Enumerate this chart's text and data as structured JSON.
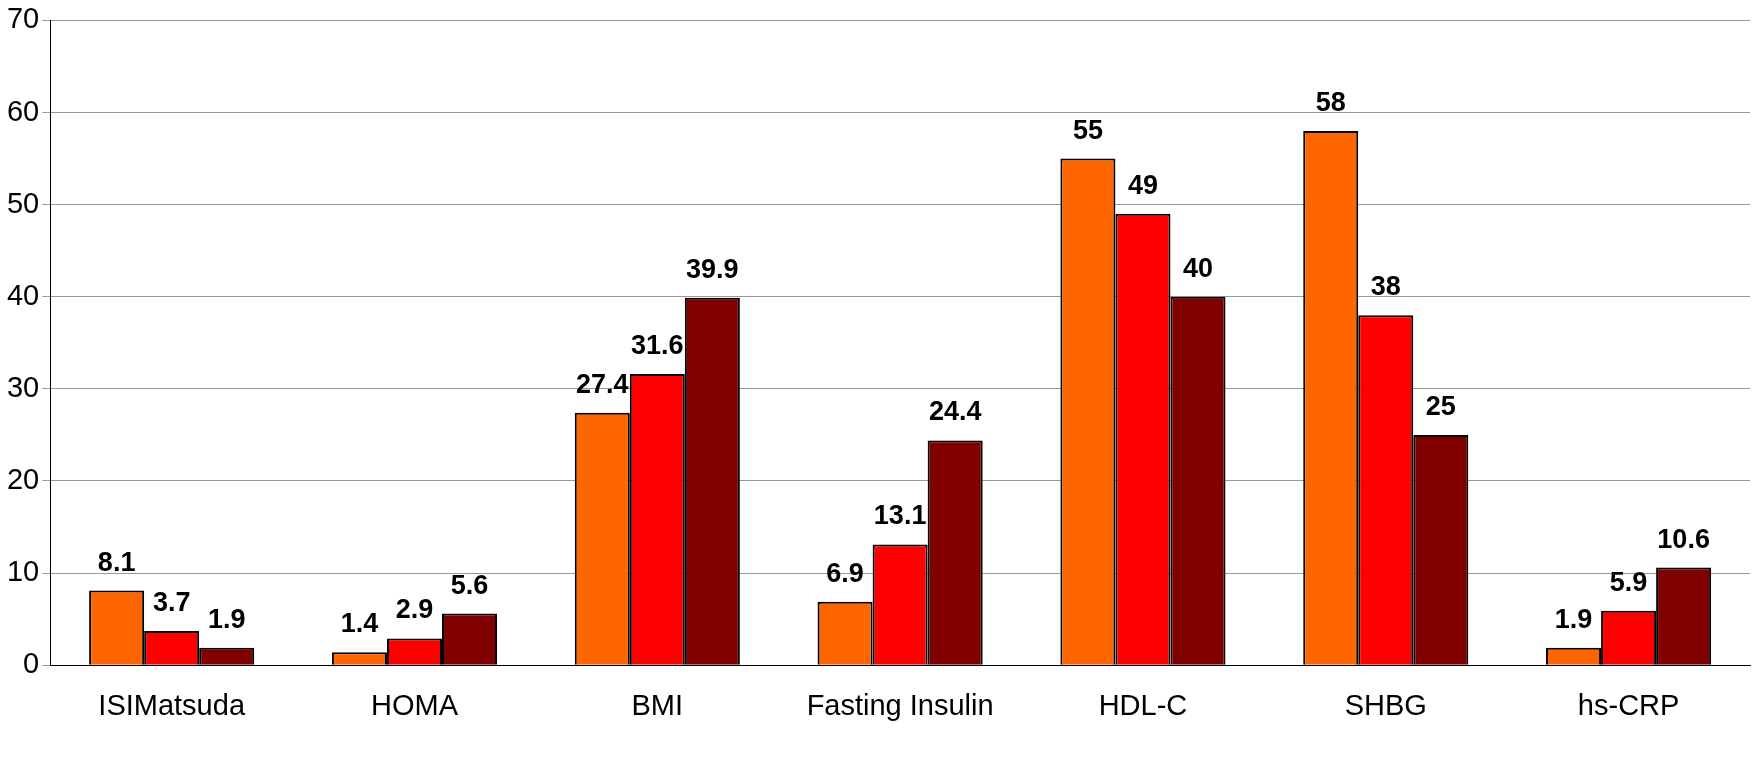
{
  "chart_data": {
    "type": "bar",
    "categories": [
      "ISIMatsuda",
      "HOMA",
      "BMI",
      "Fasting Insulin",
      "HDL-C",
      "SHBG",
      "hs-CRP"
    ],
    "series": [
      {
        "color": "#ff6600",
        "values": [
          8.1,
          1.4,
          27.4,
          6.9,
          55,
          58,
          1.9
        ]
      },
      {
        "color": "#ff0000",
        "values": [
          3.7,
          2.9,
          31.6,
          13.1,
          49,
          38,
          5.9
        ]
      },
      {
        "color": "#800000",
        "values": [
          1.9,
          5.6,
          39.9,
          24.4,
          40,
          25,
          10.6
        ]
      }
    ],
    "ylim": [
      0,
      70
    ],
    "yticks": [
      0,
      10,
      20,
      30,
      40,
      50,
      60,
      70
    ],
    "grid": "y",
    "legend": false,
    "data_labels": true
  }
}
